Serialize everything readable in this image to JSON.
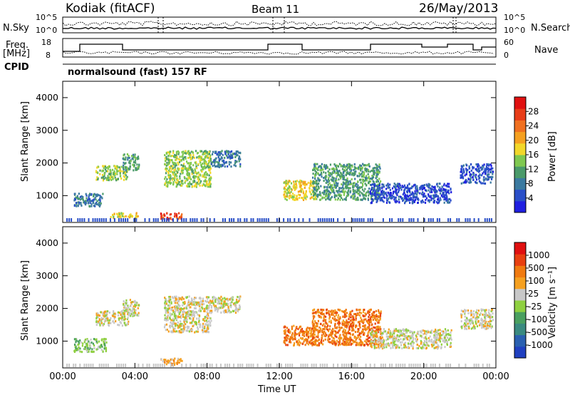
{
  "header": {
    "station": "Kodiak (fitACF)",
    "beam": "Beam 11",
    "date": "26/May/2013"
  },
  "panels": {
    "nsky_label": "N.Sky",
    "nsearch_label": "N.Search",
    "freq_label_top": "Freq.",
    "freq_label_bottom": "[MHz]",
    "nave_label": "Nave",
    "cpid_label": "CPID",
    "cpid_text": "normalsound (fast) 157 RF",
    "nsky_ticks": [
      "10^5",
      "10^0"
    ],
    "nsearch_ticks": [
      "10^5",
      "10^0"
    ],
    "freq_ticks": [
      "18",
      "8"
    ],
    "nave_ticks": [
      "60",
      "0"
    ]
  },
  "chart_data": [
    {
      "type": "heatmap",
      "name": "power",
      "xlabel": "Time UT",
      "ylabel": "Slant Range [km]",
      "x_ticks": [
        "00:00",
        "04:00",
        "08:00",
        "12:00",
        "16:00",
        "20:00",
        "00:00"
      ],
      "y_ticks": [
        "1000",
        "2000",
        "3000",
        "4000"
      ],
      "xlim_hours": [
        0,
        24
      ],
      "ylim_km": [
        180,
        4500
      ],
      "colorbar": {
        "label": "Power [dB]",
        "ticks": [
          "4",
          "8",
          "12",
          "16",
          "20",
          "24",
          "28"
        ],
        "colors": [
          "#1f1fe0",
          "#2a4fc8",
          "#3b7aa0",
          "#4a9a6a",
          "#7fc850",
          "#f2d72a",
          "#f5a020",
          "#f07020",
          "#e83c18",
          "#e01010"
        ]
      },
      "echo_regions": [
        {
          "t0": 0.6,
          "t1": 2.2,
          "r0": 700,
          "r1": 1100,
          "level": 2
        },
        {
          "t0": 1.8,
          "t1": 3.6,
          "r0": 1500,
          "r1": 1950,
          "level": 4
        },
        {
          "t0": 3.3,
          "t1": 4.2,
          "r0": 1800,
          "r1": 2300,
          "level": 3
        },
        {
          "t0": 2.6,
          "t1": 4.2,
          "r0": 350,
          "r1": 500,
          "level": 5
        },
        {
          "t0": 5.4,
          "t1": 6.6,
          "r0": 300,
          "r1": 500,
          "level": 8
        },
        {
          "t0": 5.6,
          "t1": 8.2,
          "r0": 1300,
          "r1": 2400,
          "level": 4
        },
        {
          "t0": 8.2,
          "t1": 9.8,
          "r0": 1900,
          "r1": 2400,
          "level": 2
        },
        {
          "t0": 12.2,
          "t1": 14.0,
          "r0": 900,
          "r1": 1500,
          "level": 5
        },
        {
          "t0": 13.8,
          "t1": 17.6,
          "r0": 900,
          "r1": 2000,
          "level": 3
        },
        {
          "t0": 17.0,
          "t1": 21.5,
          "r0": 800,
          "r1": 1400,
          "level": 1
        },
        {
          "t0": 22.0,
          "t1": 23.8,
          "r0": 1400,
          "r1": 2000,
          "level": 1
        }
      ]
    },
    {
      "type": "heatmap",
      "name": "velocity",
      "xlabel": "Time UT",
      "ylabel": "Slant Range [km]",
      "x_ticks": [
        "00:00",
        "04:00",
        "08:00",
        "12:00",
        "16:00",
        "20:00",
        "00:00"
      ],
      "y_ticks": [
        "1000",
        "2000",
        "3000",
        "4000"
      ],
      "xlim_hours": [
        0,
        24
      ],
      "ylim_km": [
        180,
        4500
      ],
      "colorbar": {
        "label": "Velocity [m s⁻¹]",
        "ticks": [
          "1000",
          "500",
          "100",
          "25",
          "-25",
          "-100",
          "-500",
          "-1000"
        ],
        "colors": [
          "#2040c0",
          "#2a60b0",
          "#3a8a80",
          "#4aa060",
          "#8fd040",
          "#c8c8c8",
          "#f5a020",
          "#f07a10",
          "#e84010",
          "#e01010"
        ]
      },
      "echo_regions": [
        {
          "t0": 0.6,
          "t1": 2.4,
          "r0": 700,
          "r1": 1100,
          "level": 4
        },
        {
          "t0": 1.8,
          "t1": 3.6,
          "r0": 1500,
          "r1": 1950,
          "level": 5
        },
        {
          "t0": 3.3,
          "t1": 4.2,
          "r0": 1800,
          "r1": 2300,
          "level": 5
        },
        {
          "t0": 5.4,
          "t1": 6.6,
          "r0": 300,
          "r1": 500,
          "level": 6
        },
        {
          "t0": 5.6,
          "t1": 8.2,
          "r0": 1300,
          "r1": 2400,
          "level": 5
        },
        {
          "t0": 8.2,
          "t1": 9.8,
          "r0": 1900,
          "r1": 2400,
          "level": 5
        },
        {
          "t0": 12.2,
          "t1": 14.0,
          "r0": 900,
          "r1": 1500,
          "level": 7
        },
        {
          "t0": 13.8,
          "t1": 17.6,
          "r0": 900,
          "r1": 2000,
          "level": 7
        },
        {
          "t0": 17.0,
          "t1": 21.5,
          "r0": 800,
          "r1": 1400,
          "level": 5
        },
        {
          "t0": 22.0,
          "t1": 23.8,
          "r0": 1400,
          "r1": 2000,
          "level": 5
        }
      ]
    }
  ]
}
